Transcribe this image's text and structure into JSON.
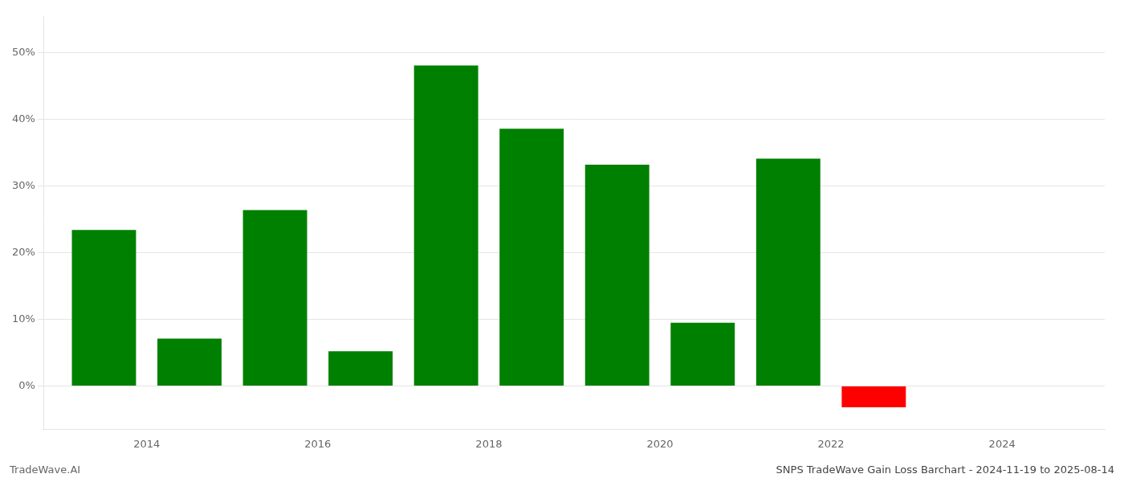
{
  "chart_data": {
    "type": "bar",
    "title": "SNPS TradeWave Gain Loss Barchart - 2024-11-19 to 2025-08-14",
    "annotations": [
      "TradeWave.AI"
    ],
    "x": [
      2013.5,
      2014.5,
      2015.5,
      2016.5,
      2017.5,
      2018.5,
      2019.5,
      2020.5,
      2021.5,
      2022.5
    ],
    "values": [
      0.234,
      0.071,
      0.264,
      0.052,
      0.481,
      0.386,
      0.332,
      0.095,
      0.341,
      -0.032
    ],
    "colors": [
      "#008000",
      "#008000",
      "#008000",
      "#008000",
      "#008000",
      "#008000",
      "#008000",
      "#008000",
      "#008000",
      "#ff0000"
    ],
    "xlim": [
      2012.8,
      2025.2
    ],
    "xticks": [
      2014,
      2016,
      2018,
      2020,
      2022,
      2024
    ],
    "ylim": [
      -0.065,
      0.555
    ],
    "yticks": [
      {
        "value": 0.0,
        "label": "0%"
      },
      {
        "value": 0.1,
        "label": "10%"
      },
      {
        "value": 0.2,
        "label": "20%"
      },
      {
        "value": 0.3,
        "label": "30%"
      },
      {
        "value": 0.4,
        "label": "40%"
      },
      {
        "value": 0.5,
        "label": "50%"
      }
    ],
    "grid": true
  }
}
